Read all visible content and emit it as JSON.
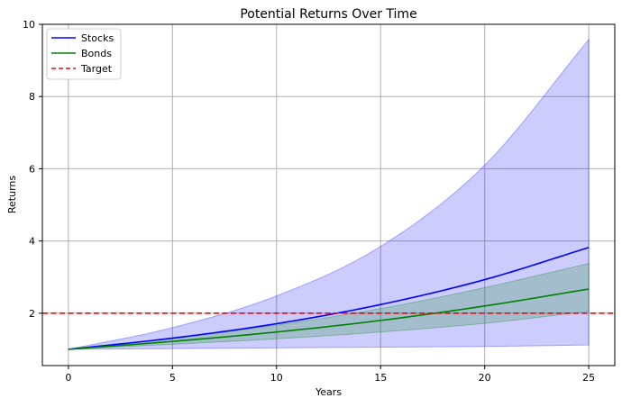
{
  "chart_data": {
    "type": "line",
    "title": "Potential Returns Over Time",
    "xlabel": "Years",
    "ylabel": "Returns",
    "xlim": [
      -1.25,
      26.25
    ],
    "ylim": [
      0.55,
      10
    ],
    "xticks": [
      0,
      5,
      10,
      15,
      20,
      25
    ],
    "yticks": [
      2,
      4,
      6,
      8,
      10
    ],
    "grid": true,
    "legend_position": "upper-left",
    "series": [
      {
        "name": "Stocks",
        "color": "#0000ff",
        "style": "solid",
        "x": [
          0,
          5,
          10,
          15,
          20,
          25
        ],
        "values": [
          1.0,
          1.31,
          1.71,
          2.24,
          2.93,
          3.82
        ],
        "band": {
          "color": "#0000ff",
          "opacity": 0.2,
          "lower": [
            1.0,
            1.02,
            1.04,
            1.06,
            1.08,
            1.12
          ],
          "upper": [
            1.0,
            1.6,
            2.48,
            3.85,
            6.1,
            9.58
          ]
        }
      },
      {
        "name": "Bonds",
        "color": "#008000",
        "style": "solid",
        "x": [
          0,
          5,
          10,
          15,
          20,
          25
        ],
        "values": [
          1.0,
          1.22,
          1.48,
          1.8,
          2.2,
          2.67
        ],
        "band": {
          "color": "#008000",
          "opacity": 0.2,
          "lower": [
            1.0,
            1.14,
            1.29,
            1.48,
            1.72,
            2.05
          ],
          "upper": [
            1.0,
            1.3,
            1.67,
            2.13,
            2.71,
            3.38
          ]
        }
      },
      {
        "name": "Target",
        "color": "#ff0000",
        "style": "dashed",
        "type": "hline",
        "y": 2
      }
    ]
  }
}
